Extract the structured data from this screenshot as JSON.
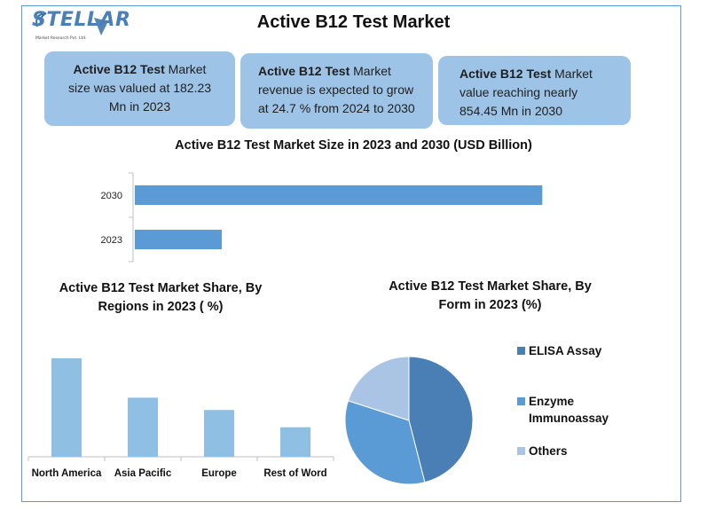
{
  "header": {
    "title": "Active B12 Test Market",
    "logo_text": "STELLAR",
    "logo_sub": "Market Research Pvt. Ltd."
  },
  "info_boxes": [
    {
      "bold": "Active B12 Test",
      "lines": [
        " Market",
        "size was valued at 182.23",
        "Mn in 2023"
      ]
    },
    {
      "bold": "Active B12 Test",
      "lines": [
        " Market",
        "revenue is expected to grow",
        "at 24.7 % from 2024 to 2030"
      ]
    },
    {
      "bold": "Active B12 Test",
      "lines": [
        " Market",
        "value reaching nearly",
        "854.45 Mn in 2030"
      ]
    }
  ],
  "colors": {
    "frame": "#5b9bd5",
    "box_fill": "#9dc3e6",
    "bar_size": "#5b9bd5",
    "bar_region": "#8fbfe3",
    "pie_elisa": "#4a7fb5",
    "pie_enzyme": "#5b9bd5",
    "pie_others": "#a9c4e4"
  },
  "chart_data": [
    {
      "type": "bar",
      "orientation": "horizontal",
      "title": "Active B12 Test Market Size in 2023 and 2030 (USD Billion)",
      "categories": [
        "2030",
        "2023"
      ],
      "values": [
        854.45,
        182.23
      ],
      "xlim": [
        0,
        1000
      ],
      "grid": false
    },
    {
      "type": "bar",
      "title": "Active B12 Test Market Share, By Regions in 2023 ( %)",
      "categories": [
        "North America",
        "Asia Pacific",
        "Europe",
        "Rest of Word"
      ],
      "values": [
        40,
        24,
        19,
        12
      ],
      "ylim": [
        0,
        45
      ],
      "grid": false
    },
    {
      "type": "pie",
      "title": "Active B12 Test Market Share, By Form in 2023 (%)",
      "categories": [
        "ELISA Assay",
        "Enzyme Immunoassay",
        "Others"
      ],
      "values": [
        46,
        34,
        20
      ],
      "legend": "right"
    }
  ]
}
